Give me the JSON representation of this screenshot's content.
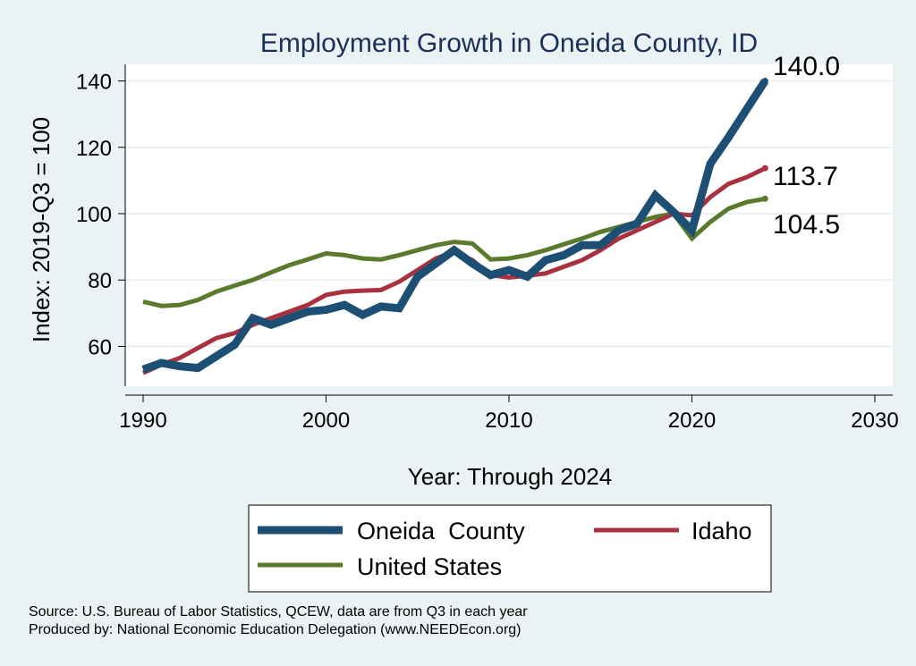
{
  "chart_data": {
    "type": "line",
    "title": "Employment Growth in Oneida County, ID",
    "xlabel": "Year: Through 2024",
    "ylabel": "Index: 2019-Q3 = 100",
    "xlim": [
      1990,
      2030
    ],
    "ylim": [
      48,
      145
    ],
    "xticks": [
      1990,
      2000,
      2010,
      2020,
      2030
    ],
    "yticks": [
      60,
      80,
      100,
      120,
      140
    ],
    "grid": true,
    "x": [
      1990,
      1991,
      1992,
      1993,
      1994,
      1995,
      1996,
      1997,
      1998,
      1999,
      2000,
      2001,
      2002,
      2003,
      2004,
      2005,
      2006,
      2007,
      2008,
      2009,
      2010,
      2011,
      2012,
      2013,
      2014,
      2015,
      2016,
      2017,
      2018,
      2019,
      2020,
      2021,
      2022,
      2023,
      2024
    ],
    "series": [
      {
        "name": "Oneida  County",
        "color": "#1d4e74",
        "values": [
          53,
          55,
          54,
          53.5,
          57,
          60.5,
          68.5,
          66.5,
          68.5,
          70.5,
          71,
          72.5,
          69.5,
          72,
          71.5,
          81,
          85,
          89,
          85,
          81.5,
          83,
          81,
          86,
          87.5,
          90.5,
          90.5,
          95,
          97,
          105.5,
          100.5,
          95,
          115,
          123,
          131.5,
          140
        ],
        "end_label": "140.0"
      },
      {
        "name": "Idaho",
        "color": "#a83240",
        "values": [
          52,
          54.5,
          56.5,
          59.5,
          62.5,
          64,
          66.5,
          68.5,
          70.5,
          72.5,
          75.5,
          76.5,
          76.8,
          77,
          79.5,
          83,
          86.5,
          88.5,
          86,
          81.5,
          80.8,
          81.3,
          82,
          84,
          86,
          89,
          92.5,
          95,
          97.5,
          100,
          99.5,
          105,
          109,
          111,
          113.7
        ],
        "end_label": "113.7"
      },
      {
        "name": "United States",
        "color": "#5a7a2e",
        "values": [
          73.5,
          72.2,
          72.5,
          74,
          76.5,
          78.3,
          80,
          82.3,
          84.5,
          86.2,
          88,
          87.5,
          86.5,
          86.2,
          87.5,
          89,
          90.5,
          91.5,
          91,
          86.2,
          86.5,
          87.5,
          89,
          90.8,
          92.5,
          94.5,
          96,
          97.5,
          99,
          100,
          92.5,
          97.5,
          101.5,
          103.5,
          104.5
        ],
        "end_label": "104.5"
      }
    ],
    "legend": {
      "position": "bottom",
      "items": [
        "Oneida  County",
        "Idaho",
        "United States"
      ]
    },
    "notes": [
      "Source: U.S. Bureau of Labor Statistics, QCEW, data are from Q3 in each year",
      "Produced by: National Economic Education Delegation (www.NEEDEcon.org)"
    ]
  }
}
